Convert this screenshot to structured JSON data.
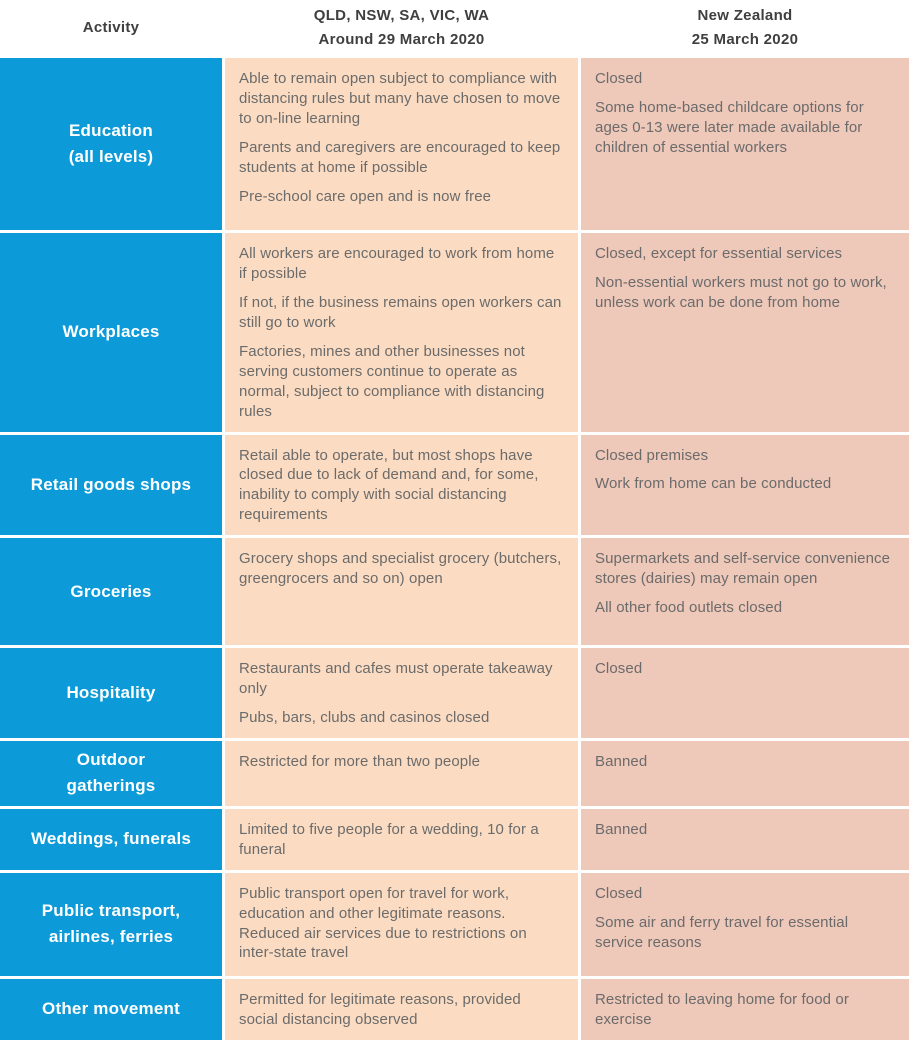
{
  "header": {
    "activity_label": "Activity",
    "au_title": "QLD, NSW, SA, VIC, WA",
    "au_subtitle": "Around 29 March 2020",
    "nz_title": "New Zealand",
    "nz_subtitle": "25 March 2020"
  },
  "colors": {
    "activity_bg": "#0c9bd8",
    "au_bg": "#fbdcc2",
    "nz_bg": "#eec8b9",
    "body_text": "#6b6b6b",
    "header_text": "#3f3f3f",
    "activity_text": "#ffffff"
  },
  "rows": [
    {
      "activity_lines": [
        "Education",
        "(all levels)"
      ],
      "au": [
        "Able to remain open subject to compliance with distancing rules but many have chosen to move to on-line learning",
        "Parents and caregivers are encouraged to keep students at home if possible",
        "Pre-school care open and is now free"
      ],
      "nz": [
        "Closed",
        "Some home-based childcare options for ages 0-13 were later made available for children of essential workers"
      ]
    },
    {
      "activity_lines": [
        "Workplaces"
      ],
      "au": [
        "All workers are encouraged to work from home if possible",
        "If not, if the business remains open workers can still go to work",
        "Factories, mines and other businesses not serving customers continue to operate as normal, subject to compliance with distancing rules"
      ],
      "nz": [
        "Closed, except for essential services",
        "Non-essential workers must not go to work, unless work can be done from home"
      ]
    },
    {
      "activity_lines": [
        "Retail goods shops"
      ],
      "au": [
        "Retail able to operate, but most shops have closed due to lack of demand and, for some, inability to comply with social distancing requirements"
      ],
      "nz": [
        "Closed premises",
        "Work from home can be conducted"
      ]
    },
    {
      "activity_lines": [
        "Groceries"
      ],
      "au": [
        "Grocery shops and specialist grocery (butchers, greengrocers and so on) open"
      ],
      "nz": [
        "Supermarkets and self-service convenience stores (dairies) may remain open",
        "All other food outlets closed"
      ]
    },
    {
      "activity_lines": [
        "Hospitality"
      ],
      "au": [
        "Restaurants and cafes must operate takeaway only",
        "Pubs, bars, clubs and casinos closed"
      ],
      "nz": [
        "Closed"
      ]
    },
    {
      "activity_lines": [
        "Outdoor",
        "gatherings"
      ],
      "au": [
        "Restricted for more than two people"
      ],
      "nz": [
        "Banned"
      ]
    },
    {
      "activity_lines": [
        "Weddings, funerals"
      ],
      "au": [
        "Limited to five people for a wedding, 10 for a funeral"
      ],
      "nz": [
        "Banned"
      ]
    },
    {
      "activity_lines": [
        "Public transport,",
        "airlines, ferries"
      ],
      "au": [
        "Public transport open for travel for work, education and other legitimate reasons. Reduced air services due to restrictions on inter-state travel"
      ],
      "nz": [
        "Closed",
        "Some air and ferry travel for essential service reasons"
      ]
    },
    {
      "activity_lines": [
        "Other movement"
      ],
      "au": [
        "Permitted for legitimate reasons, provided social distancing observed"
      ],
      "nz": [
        "Restricted to leaving home for food or exercise"
      ]
    }
  ]
}
